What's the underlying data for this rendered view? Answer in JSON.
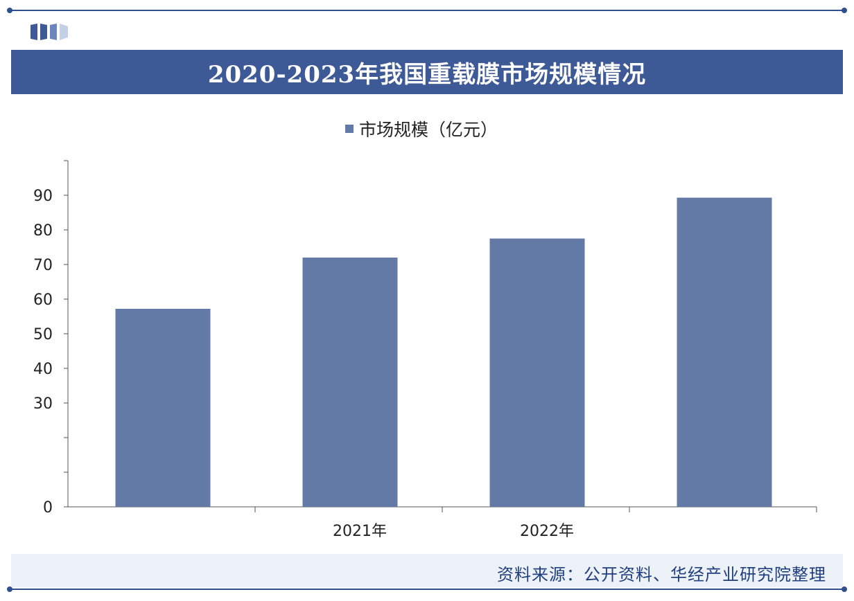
{
  "title": "2020-2023年我国重载膜市场规模情况",
  "source": "资料来源：公开资料、华经产业研究院整理",
  "colors": {
    "title_bar": "#3d5a96",
    "bar": "#637aa6",
    "source_text": "#1f3f7f"
  },
  "chart_data": {
    "type": "bar",
    "categories": [
      "",
      "2021年",
      "2022年",
      ""
    ],
    "series": [
      {
        "name": "市场规模（亿元）",
        "values": [
          57.2,
          72,
          77.5,
          89.3
        ]
      }
    ],
    "ylim": [
      0,
      100
    ],
    "yticks": [
      0,
      10,
      20,
      30,
      40,
      50,
      60,
      70,
      80,
      90,
      100
    ],
    "ytick_labels": [
      "0",
      "",
      "",
      "30",
      "40",
      "50",
      "60",
      "70",
      "80",
      "90",
      ""
    ],
    "legend": "top-center",
    "grid": false
  }
}
